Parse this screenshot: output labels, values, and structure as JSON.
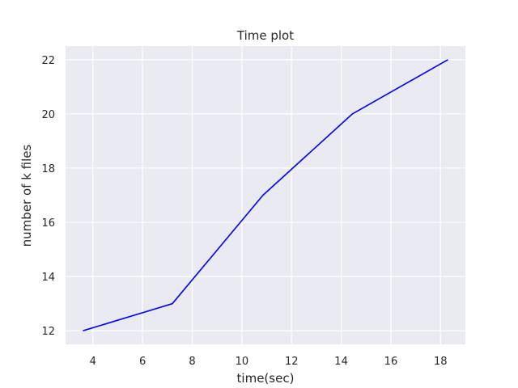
{
  "chart_data": {
    "type": "line",
    "title": "Time plot",
    "xlabel": "time(sec)",
    "ylabel": "number of k files",
    "xlim": [
      2.9,
      19.0
    ],
    "ylim": [
      11.5,
      22.5
    ],
    "x_ticks": [
      4,
      6,
      8,
      10,
      12,
      14,
      16,
      18
    ],
    "y_ticks": [
      12,
      14,
      16,
      18,
      20,
      22
    ],
    "grid": true,
    "background_color": "#eaeaf2",
    "series": [
      {
        "color": "#0000ff",
        "x": [
          3.6,
          7.2,
          10.85,
          14.45,
          18.3
        ],
        "y": [
          12,
          13,
          17,
          20,
          22
        ]
      }
    ]
  }
}
